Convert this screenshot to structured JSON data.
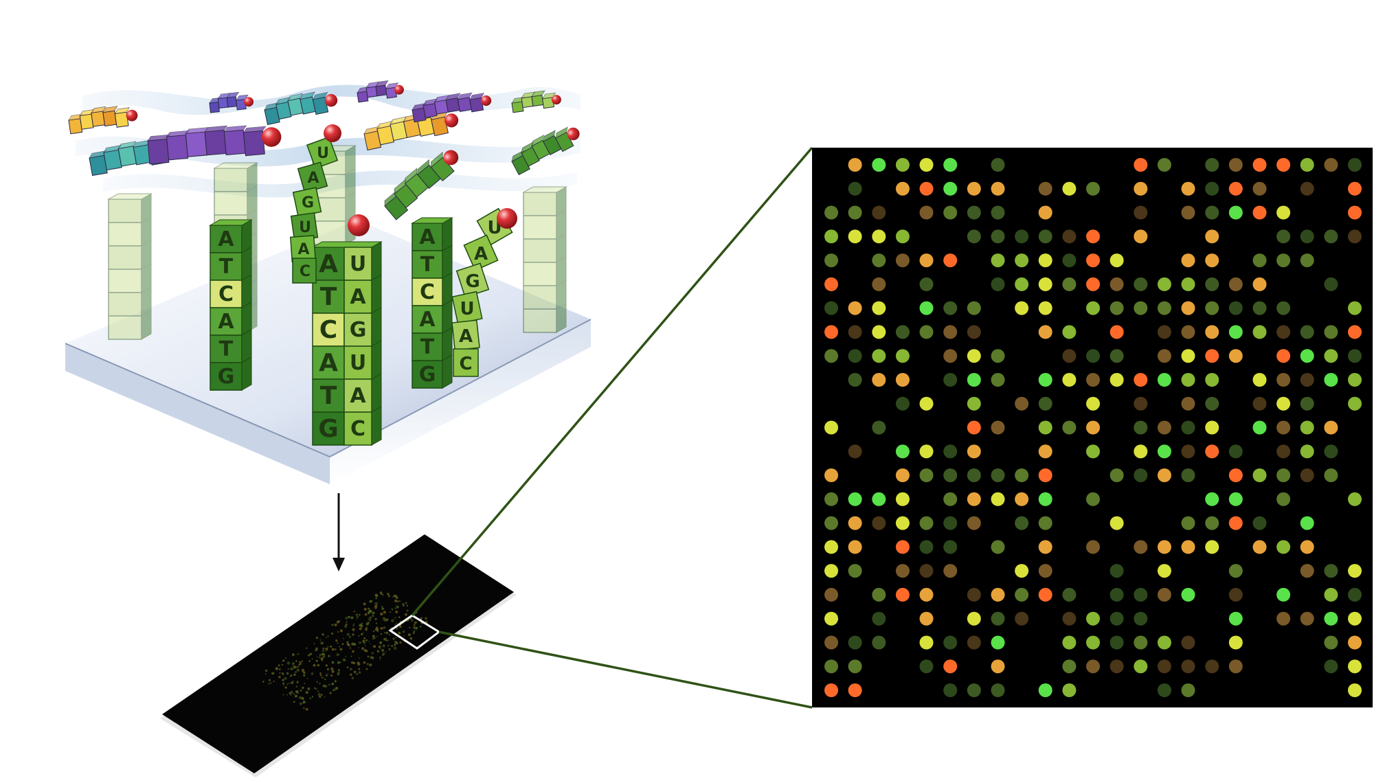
{
  "diagram": {
    "probe_columns": [
      {
        "id": "probe-1",
        "letters": [
          "A",
          "T",
          "C",
          "A",
          "T",
          "G"
        ]
      },
      {
        "id": "probe-2",
        "letters": [
          "A",
          "T",
          "C",
          "A",
          "T",
          "G"
        ]
      },
      {
        "id": "probe-3",
        "letters": [
          "A",
          "T",
          "C",
          "A",
          "T",
          "G"
        ]
      }
    ],
    "hybrid_targets": [
      {
        "id": "target-bound-1",
        "letters": [
          "U",
          "A",
          "G",
          "U",
          "A",
          "C"
        ]
      },
      {
        "id": "target-partial-3",
        "letters": [
          "U",
          "A",
          "G",
          "U",
          "A",
          "C"
        ]
      }
    ],
    "free_target": {
      "id": "target-free",
      "letters": [
        "U",
        "A",
        "G",
        "U",
        "A",
        "C"
      ]
    },
    "microarray_rows": 23,
    "microarray_cols": 23,
    "spot_palette": [
      "#2e4a1c",
      "#3d5a22",
      "#5b7a2a",
      "#87b733",
      "#59e24a",
      "#d8e23a",
      "#e7a33a",
      "#ff6a2a",
      "#7a5a28",
      "#4a3618"
    ],
    "colors": {
      "slide": "#000000",
      "connector_line": "#2f5216",
      "zoom_box": "#ffffff",
      "panel_bg": "#000000",
      "tile_green": "#3f8a2a",
      "tile_light": "#a7cf5e",
      "tile_yellow": "#d9e57a",
      "label_sphere": "#e0353a"
    }
  }
}
